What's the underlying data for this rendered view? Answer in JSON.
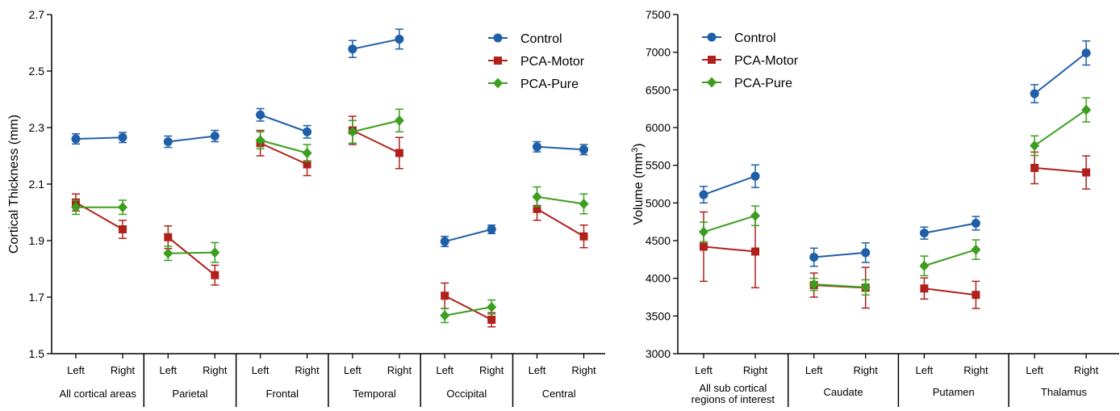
{
  "colors": {
    "Control": "#1f5fa8",
    "PCA-Motor": "#b0211c",
    "PCA-Pure": "#3c9e1f"
  },
  "chart_data": [
    {
      "type": "line",
      "ylabel": "Cortical Thickness (mm)",
      "ylim": [
        1.5,
        2.7
      ],
      "yticks": [
        "1.5",
        "1.7",
        "1.9",
        "2.1",
        "2.3",
        "2.5",
        "2.7"
      ],
      "categories": [
        "Left",
        "Right"
      ],
      "groups": [
        "All cortical areas",
        "Parietal",
        "Frontal",
        "Temporal",
        "Occipital",
        "Central"
      ],
      "legend": "top-right",
      "grid": false,
      "series": [
        {
          "name": "Control",
          "marker": "circle",
          "color": "#1f5fa8",
          "values": [
            [
              2.26,
              2.265
            ],
            [
              2.25,
              2.27
            ],
            [
              2.345,
              2.285
            ],
            [
              2.578,
              2.613
            ],
            [
              1.897,
              1.94
            ],
            [
              2.232,
              2.222
            ]
          ],
          "errors": [
            [
              0.018,
              0.018
            ],
            [
              0.02,
              0.02
            ],
            [
              0.022,
              0.022
            ],
            [
              0.03,
              0.035
            ],
            [
              0.018,
              0.015
            ],
            [
              0.018,
              0.018
            ]
          ]
        },
        {
          "name": "PCA-Motor",
          "marker": "square",
          "color": "#b0211c",
          "values": [
            [
              2.035,
              1.94
            ],
            [
              1.912,
              1.778
            ],
            [
              2.245,
              2.17
            ],
            [
              2.29,
              2.21
            ],
            [
              1.705,
              1.62
            ],
            [
              2.012,
              1.915
            ]
          ],
          "errors": [
            [
              0.03,
              0.032
            ],
            [
              0.04,
              0.035
            ],
            [
              0.045,
              0.04
            ],
            [
              0.05,
              0.055
            ],
            [
              0.045,
              0.025
            ],
            [
              0.04,
              0.04
            ]
          ]
        },
        {
          "name": "PCA-Pure",
          "marker": "diamond",
          "color": "#3c9e1f",
          "values": [
            [
              2.018,
              2.018
            ],
            [
              1.855,
              1.858
            ],
            [
              2.255,
              2.21
            ],
            [
              2.285,
              2.325
            ],
            [
              1.635,
              1.665
            ],
            [
              2.055,
              2.03
            ]
          ],
          "errors": [
            [
              0.025,
              0.025
            ],
            [
              0.025,
              0.035
            ],
            [
              0.03,
              0.03
            ],
            [
              0.04,
              0.04
            ],
            [
              0.025,
              0.025
            ],
            [
              0.035,
              0.035
            ]
          ]
        }
      ]
    },
    {
      "type": "line",
      "ylabel": "Volume (mm",
      "ylabel_sup": "3",
      "ylabel_close": ")",
      "ylim": [
        3000,
        7500
      ],
      "yticks": [
        "3000",
        "3500",
        "4000",
        "4500",
        "5000",
        "5500",
        "6000",
        "6500",
        "7000",
        "7500"
      ],
      "categories": [
        "Left",
        "Right"
      ],
      "groups": [
        [
          "All sub cortical",
          "regions of interest"
        ],
        [
          "Caudate"
        ],
        [
          "Putamen"
        ],
        [
          "Thalamus"
        ]
      ],
      "legend": "top-left",
      "grid": false,
      "series": [
        {
          "name": "Control",
          "marker": "circle",
          "color": "#1f5fa8",
          "values": [
            [
              5110,
              5355
            ],
            [
              4280,
              4340
            ],
            [
              4600,
              4730
            ],
            [
              6450,
              6990
            ]
          ],
          "errors": [
            [
              110,
              150
            ],
            [
              120,
              130
            ],
            [
              80,
              90
            ],
            [
              120,
              160
            ]
          ]
        },
        {
          "name": "PCA-Motor",
          "marker": "square",
          "color": "#b0211c",
          "values": [
            [
              4420,
              4355
            ],
            [
              3910,
              3875
            ],
            [
              3865,
              3780
            ],
            [
              5465,
              5405
            ]
          ],
          "errors": [
            [
              460,
              480
            ],
            [
              160,
              270
            ],
            [
              140,
              180
            ],
            [
              210,
              220
            ]
          ]
        },
        {
          "name": "PCA-Pure",
          "marker": "diamond",
          "color": "#3c9e1f",
          "values": [
            [
              4615,
              4830
            ],
            [
              3920,
              3880
            ],
            [
              4165,
              4380
            ],
            [
              5760,
              6235
            ]
          ],
          "errors": [
            [
              130,
              130
            ],
            [
              80,
              100
            ],
            [
              130,
              130
            ],
            [
              130,
              160
            ]
          ]
        }
      ]
    }
  ]
}
